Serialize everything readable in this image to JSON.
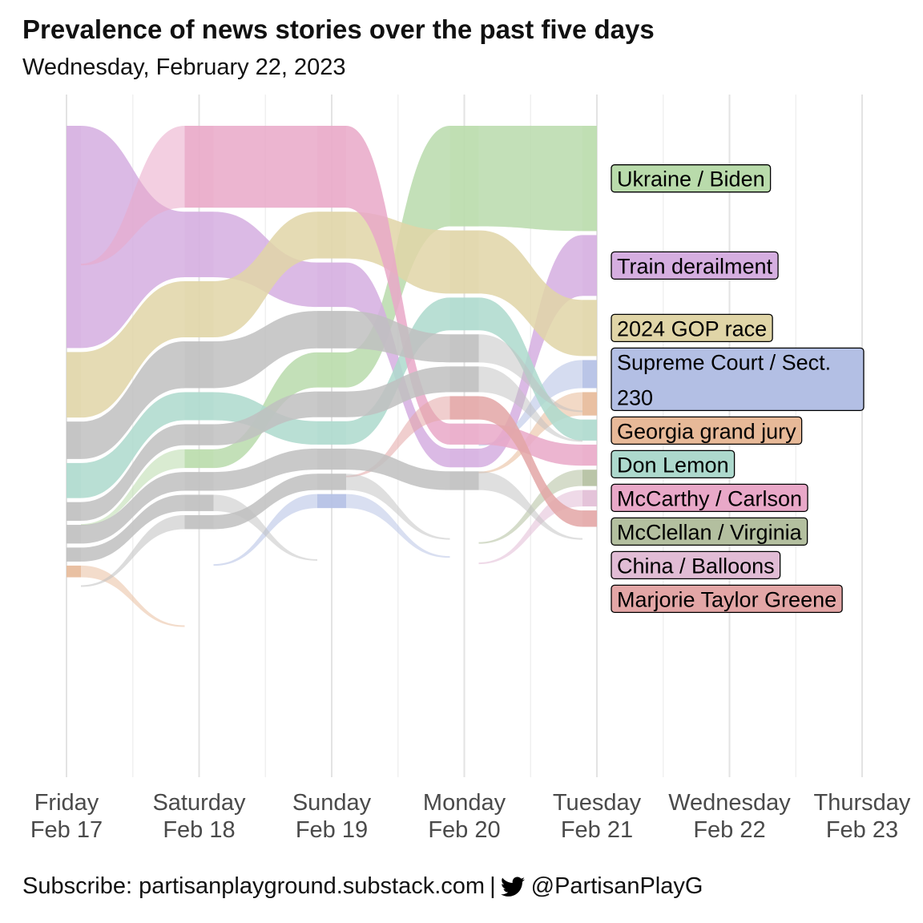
{
  "header": {
    "title": "Prevalence of news stories over the past five days",
    "subtitle": "Wednesday, February 22, 2023"
  },
  "footer": {
    "subscribe": "Subscribe: partisanplayground.substack.com",
    "separator": "|",
    "twitter_icon": "twitter-bird-icon",
    "handle": "@PartisanPlayG"
  },
  "chart_data": {
    "type": "area",
    "chart_style": "ranked stream / bump flow chart",
    "title": "Prevalence of news stories over the past five days",
    "subtitle": "Wednesday, February 22, 2023",
    "x_ticks": [
      {
        "day": "Friday",
        "date": "Feb 17"
      },
      {
        "day": "Saturday",
        "date": "Feb 18"
      },
      {
        "day": "Sunday",
        "date": "Feb 19"
      },
      {
        "day": "Monday",
        "date": "Feb 20"
      },
      {
        "day": "Tuesday",
        "date": "Feb 21"
      },
      {
        "day": "Wednesday",
        "date": "Feb 22"
      },
      {
        "day": "Thursday",
        "date": "Feb 23"
      }
    ],
    "x": [
      "Feb 17",
      "Feb 18",
      "Feb 19",
      "Feb 20",
      "Feb 21"
    ],
    "y_axis_shown": false,
    "grid": "vertical",
    "legend": "direct labels right of the last day",
    "series_note": "stream value = relative prevalence (approx. units); null = not among shown stories",
    "series": [
      {
        "name": "Ukraine / Biden",
        "color": "#b9dbab",
        "values": [
          null,
          8,
          15,
          43,
          45
        ]
      },
      {
        "name": "Train derailment",
        "color": "#d5aee0",
        "values": [
          95,
          28,
          19,
          8,
          26
        ]
      },
      {
        "name": "2024 GOP race",
        "color": "#e0d5a7",
        "values": [
          28,
          24,
          20,
          27,
          24
        ]
      },
      {
        "name": "Supreme Court / Sect. 230",
        "color": "#b3bfe4",
        "values": [
          null,
          null,
          6,
          null,
          12
        ]
      },
      {
        "name": "Georgia grand jury",
        "color": "#e7b998",
        "values": [
          5,
          null,
          null,
          null,
          10
        ]
      },
      {
        "name": "Don Lemon",
        "color": "#add9cd",
        "values": [
          15,
          12,
          10,
          14,
          9
        ]
      },
      {
        "name": "McCarthy / Carlson",
        "color": "#e9a8c8",
        "values": [
          null,
          35,
          35,
          9,
          9
        ]
      },
      {
        "name": "McClellan / Virginia",
        "color": "#b3bf9f",
        "values": [
          null,
          null,
          null,
          null,
          7
        ]
      },
      {
        "name": "China / Balloons",
        "color": "#e1bcd5",
        "values": [
          null,
          null,
          null,
          null,
          7
        ]
      },
      {
        "name": "Marjorie Taylor Greene",
        "color": "#e3a6a6",
        "values": [
          null,
          null,
          null,
          10,
          7
        ]
      },
      {
        "name": "",
        "color": "#bfbfbf",
        "values": [
          16,
          20,
          16,
          12,
          null
        ]
      },
      {
        "name": "",
        "color": "#bfbfbf",
        "values": [
          8,
          9,
          11,
          11,
          null
        ]
      },
      {
        "name": "",
        "color": "#bfbfbf",
        "values": [
          8,
          8,
          9,
          8,
          null
        ]
      },
      {
        "name": "",
        "color": "#bfbfbf",
        "values": [
          6,
          7,
          null,
          null,
          null
        ]
      },
      {
        "name": "",
        "color": "#bfbfbf",
        "values": [
          null,
          6,
          7,
          null,
          null
        ]
      }
    ]
  }
}
